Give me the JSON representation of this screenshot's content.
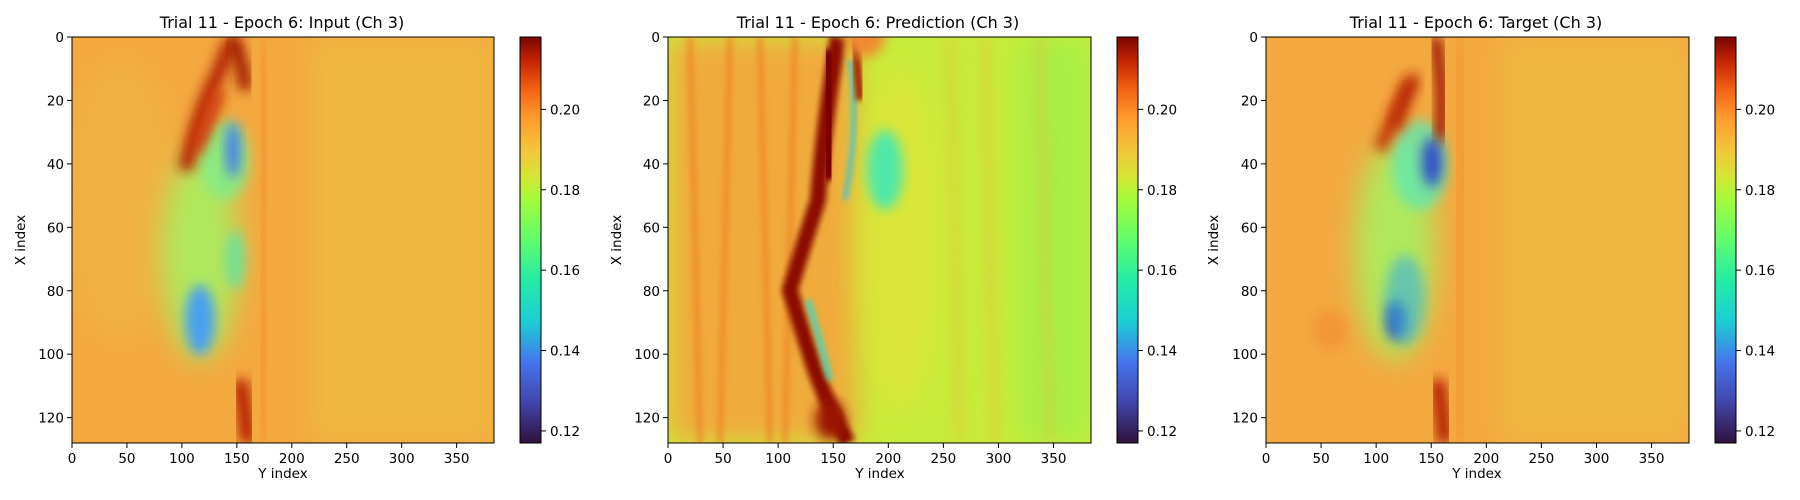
{
  "chart_data": [
    {
      "type": "heatmap",
      "title": "Trial 11 - Epoch 6: Input (Ch 3)",
      "xlabel": "Y index",
      "ylabel": "X index",
      "xticks": [
        "0",
        "50",
        "100",
        "150",
        "200",
        "250",
        "300",
        "350"
      ],
      "yticks": [
        "0",
        "20",
        "40",
        "60",
        "80",
        "100",
        "120"
      ],
      "xlim": [
        0,
        384
      ],
      "ylim": [
        128,
        0
      ],
      "colorbar": {
        "ticks": [
          "0.12",
          "0.14",
          "0.16",
          "0.18",
          "0.20"
        ],
        "range": [
          0.117,
          0.218
        ]
      },
      "colormap": "turbo",
      "background_value": 0.187,
      "features": [
        {
          "desc": "red streak",
          "x": 140,
          "y": 30,
          "v": 0.212
        },
        {
          "desc": "red streak",
          "x": 175,
          "y": 18,
          "v": 0.21
        },
        {
          "desc": "red",
          "x": 180,
          "y": 5,
          "v": 0.205
        },
        {
          "desc": "red bottom",
          "x": 170,
          "y": 120,
          "v": 0.205
        },
        {
          "desc": "blue low",
          "x": 180,
          "y": 42,
          "v": 0.135
        },
        {
          "desc": "blue low",
          "x": 150,
          "y": 90,
          "v": 0.14
        },
        {
          "desc": "green region",
          "x": 160,
          "y": 70,
          "v": 0.165
        }
      ]
    },
    {
      "type": "heatmap",
      "title": "Trial 11 - Epoch 6: Prediction (Ch 3)",
      "xlabel": "Y index",
      "ylabel": "X index",
      "xticks": [
        "0",
        "50",
        "100",
        "150",
        "200",
        "250",
        "300",
        "350"
      ],
      "yticks": [
        "0",
        "20",
        "40",
        "60",
        "80",
        "100",
        "120"
      ],
      "xlim": [
        0,
        384
      ],
      "ylim": [
        128,
        0
      ],
      "colorbar": {
        "ticks": [
          "0.12",
          "0.14",
          "0.16",
          "0.18",
          "0.20"
        ],
        "range": [
          0.117,
          0.218
        ]
      },
      "colormap": "turbo",
      "background_value": 0.18,
      "features": [
        {
          "desc": "dark red streak",
          "x": 145,
          "y": 25,
          "v": 0.215
        },
        {
          "desc": "dark red streak",
          "x": 100,
          "y": 75,
          "v": 0.212
        },
        {
          "desc": "dark red bottom",
          "x": 160,
          "y": 118,
          "v": 0.215
        },
        {
          "desc": "cyan",
          "x": 115,
          "y": 80,
          "v": 0.15
        },
        {
          "desc": "cyan",
          "x": 170,
          "y": 15,
          "v": 0.15
        },
        {
          "desc": "green band",
          "x": 185,
          "y": 60,
          "v": 0.165
        }
      ]
    },
    {
      "type": "heatmap",
      "title": "Trial 11 - Epoch 6: Target (Ch 3)",
      "xlabel": "Y index",
      "ylabel": "X index",
      "xticks": [
        "0",
        "50",
        "100",
        "150",
        "200",
        "250",
        "300",
        "350"
      ],
      "yticks": [
        "0",
        "20",
        "40",
        "60",
        "80",
        "100",
        "120"
      ],
      "xlim": [
        0,
        384
      ],
      "ylim": [
        128,
        0
      ],
      "colorbar": {
        "ticks": [
          "0.12",
          "0.14",
          "0.16",
          "0.18",
          "0.20"
        ],
        "range": [
          0.117,
          0.218
        ]
      },
      "colormap": "turbo",
      "background_value": 0.187,
      "features": [
        {
          "desc": "red streak",
          "x": 130,
          "y": 30,
          "v": 0.21
        },
        {
          "desc": "red streak",
          "x": 175,
          "y": 25,
          "v": 0.212
        },
        {
          "desc": "red bottom",
          "x": 170,
          "y": 118,
          "v": 0.205
        },
        {
          "desc": "dark blue",
          "x": 182,
          "y": 42,
          "v": 0.125
        },
        {
          "desc": "dark blue",
          "x": 140,
          "y": 88,
          "v": 0.125
        },
        {
          "desc": "green region",
          "x": 160,
          "y": 70,
          "v": 0.168
        }
      ]
    }
  ]
}
